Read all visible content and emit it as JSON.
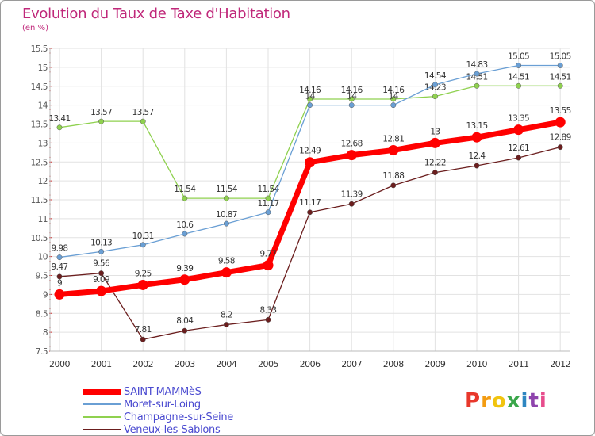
{
  "header": {
    "title": "Evolution du Taux de Taxe d'Habitation",
    "subtitle": "(en %)"
  },
  "logo": {
    "text": "Proxiti",
    "letters": [
      {
        "ch": "P",
        "color": "#e8372b"
      },
      {
        "ch": "r",
        "color": "#f39c12"
      },
      {
        "ch": "o",
        "color": "#f1c40f"
      },
      {
        "ch": "x",
        "color": "#3aa64a"
      },
      {
        "ch": "i",
        "color": "#2e86c1"
      },
      {
        "ch": "t",
        "color": "#8e44ad"
      },
      {
        "ch": "i",
        "color": "#e74c8c"
      }
    ]
  },
  "chart_data": {
    "type": "line",
    "title": "Evolution du Taux de Taxe d'Habitation",
    "subtitle": "(en %)",
    "x": [
      "2000",
      "2001",
      "2002",
      "2003",
      "2004",
      "2005",
      "2006",
      "2007",
      "2008",
      "2009",
      "2010",
      "2011",
      "2012"
    ],
    "ylim": [
      7.5,
      15.5
    ],
    "yticks": [
      "7.5",
      "8",
      "8.5",
      "9",
      "9.5",
      "10",
      "10.5",
      "11",
      "11.5",
      "12",
      "12.5",
      "13",
      "13.5",
      "14",
      "14.5",
      "15",
      "15.5"
    ],
    "grid": true,
    "legend_position": "bottom-left",
    "series": [
      {
        "name": "Champagne-sur-Seine",
        "color": "#8fd14f",
        "values": [
          13.41,
          13.57,
          13.57,
          11.54,
          11.54,
          11.54,
          14.16,
          14.16,
          14.16,
          14.23,
          14.51,
          14.51,
          14.51
        ],
        "labels": [
          "13.41",
          "13.57",
          "13.57",
          "11.54",
          "11.54",
          "11.54",
          "14.16",
          "14.16",
          "14.16",
          "14.23",
          "14.51",
          "14.51",
          "14.51"
        ]
      },
      {
        "name": "Moret-sur-Loing",
        "color": "#6a9fd4",
        "values": [
          9.98,
          10.13,
          10.31,
          10.6,
          10.87,
          11.17,
          14.0,
          14.0,
          14.0,
          14.54,
          14.83,
          15.05,
          15.05
        ],
        "labels": [
          "9.98",
          "10.13",
          "10.31",
          "10.6",
          "10.87",
          "11.17",
          "14",
          "14",
          "14",
          "14.54",
          "14.83",
          "15.05",
          "15.05"
        ]
      },
      {
        "name": "Veneux-les-Sablons",
        "color": "#6b1e1e",
        "values": [
          9.47,
          9.56,
          7.81,
          8.04,
          8.2,
          8.33,
          11.17,
          11.39,
          11.88,
          12.22,
          12.4,
          12.61,
          12.89
        ],
        "labels": [
          "9.47",
          "9.56",
          "7.81",
          "8.04",
          "8.2",
          "8.33",
          "11.17",
          "11.39",
          "11.88",
          "12.22",
          "12.4",
          "12.61",
          "12.89"
        ]
      },
      {
        "name": "SAINT-MAMMèS",
        "color": "#ff0000",
        "values": [
          9.0,
          9.09,
          9.25,
          9.39,
          9.58,
          9.77,
          12.49,
          12.68,
          12.81,
          13.0,
          13.15,
          13.35,
          13.55
        ],
        "labels": [
          "9",
          "9.09",
          "9.25",
          "9.39",
          "9.58",
          "9.77",
          "12.49",
          "12.68",
          "12.81",
          "13",
          "13.15",
          "13.35",
          "13.55"
        ]
      }
    ],
    "legend": [
      {
        "name": "SAINT-MAMMèS",
        "color": "#ff0000"
      },
      {
        "name": "Moret-sur-Loing",
        "color": "#6a9fd4"
      },
      {
        "name": "Champagne-sur-Seine",
        "color": "#8fd14f"
      },
      {
        "name": "Veneux-les-Sablons",
        "color": "#6b1e1e"
      }
    ]
  }
}
